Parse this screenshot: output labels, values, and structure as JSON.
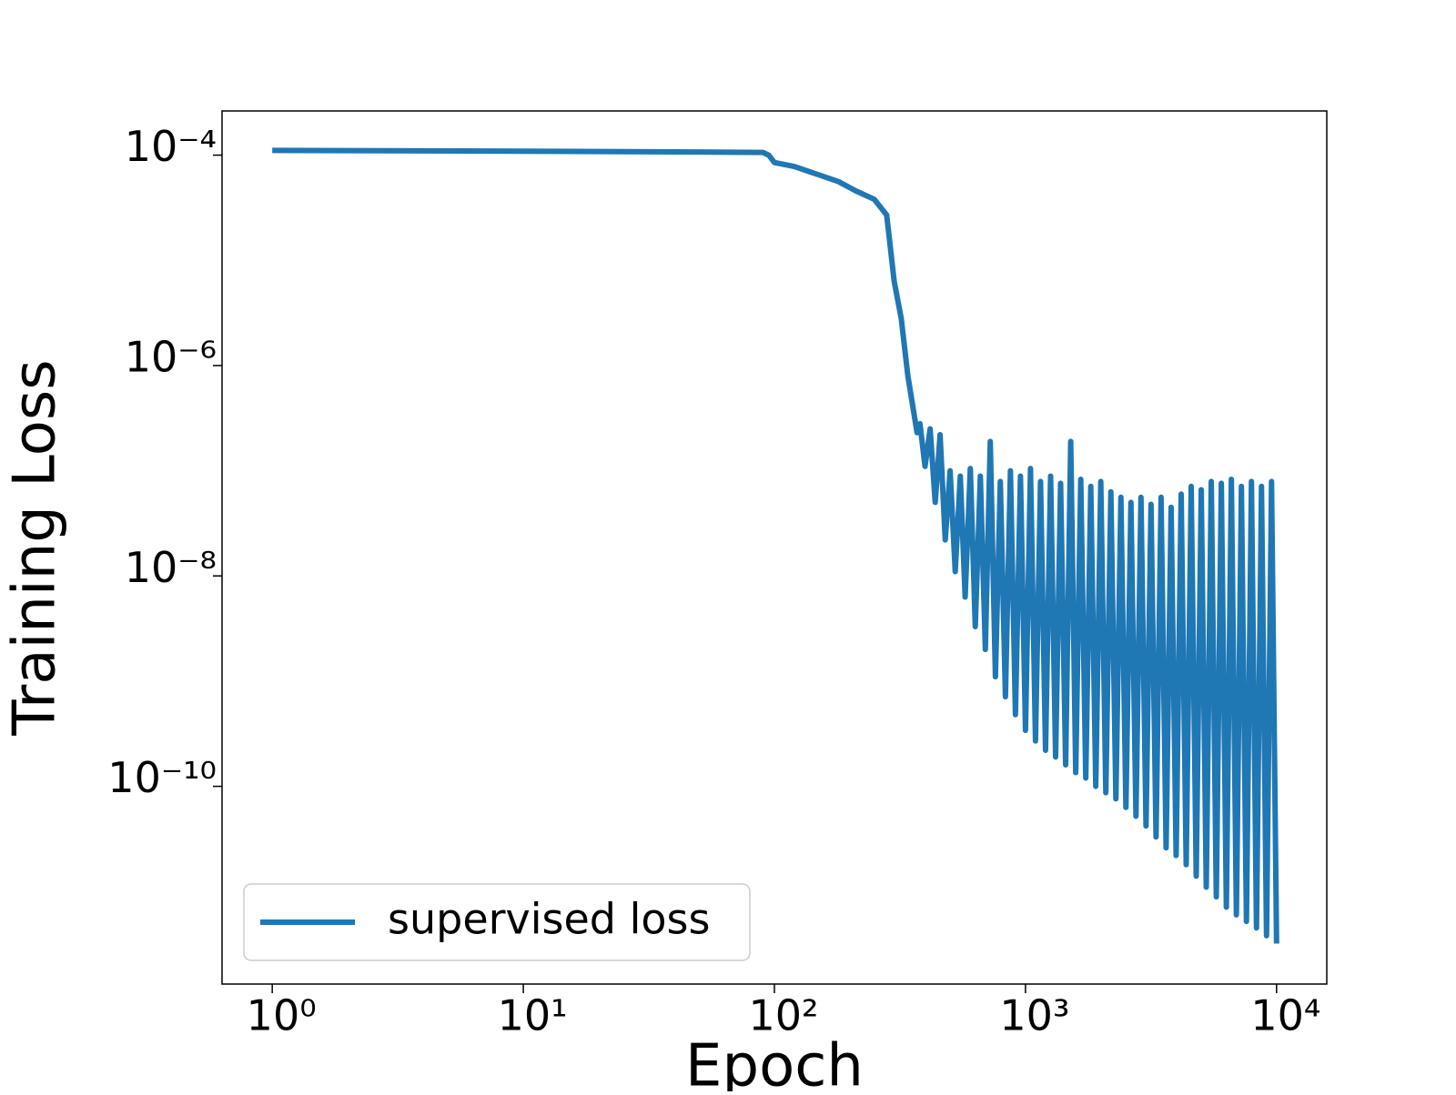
{
  "chart_data": {
    "type": "line",
    "xlabel": "Epoch",
    "ylabel": "Training Loss",
    "xscale": "log",
    "yscale": "log",
    "xlim": [
      0.631,
      15849
    ],
    "ylim": [
      1.32e-12,
      0.000263
    ],
    "xticks": [
      {
        "value": 1,
        "label": "10⁰"
      },
      {
        "value": 10,
        "label": "10¹"
      },
      {
        "value": 100,
        "label": "10²"
      },
      {
        "value": 1000,
        "label": "10³"
      },
      {
        "value": 10000,
        "label": "10⁴"
      }
    ],
    "yticks": [
      {
        "value": 1e-10,
        "label": "10⁻¹⁰"
      },
      {
        "value": 1e-08,
        "label": "10⁻⁸"
      },
      {
        "value": 1e-06,
        "label": "10⁻⁶"
      },
      {
        "value": 0.0001,
        "label": "10⁻⁴"
      }
    ],
    "legend": "lower left",
    "series": [
      {
        "name": "supervised loss",
        "color": "#1f77b4",
        "x": [
          1,
          10,
          50,
          90,
          95,
          100,
          120,
          150,
          180,
          210,
          250,
          280,
          300,
          320,
          340,
          370,
          380,
          398,
          417,
          437,
          457,
          479,
          501,
          525,
          550,
          575,
          603,
          631,
          661,
          692,
          724,
          759,
          794,
          832,
          871,
          912,
          955,
          1000,
          1047,
          1096,
          1148,
          1202,
          1259,
          1318,
          1380,
          1445,
          1514,
          1585,
          1660,
          1738,
          1820,
          1905,
          1995,
          2089,
          2188,
          2291,
          2399,
          2512,
          2630,
          2754,
          2884,
          3020,
          3162,
          3311,
          3467,
          3631,
          3802,
          3981,
          4169,
          4365,
          4571,
          4786,
          5012,
          5248,
          5495,
          5754,
          6026,
          6310,
          6607,
          6918,
          7244,
          7586,
          7943,
          8318,
          8710,
          9120,
          9550,
          10000
        ],
        "values": [
          0.000111,
          0.000109,
          0.000107,
          0.000106,
          0.0001,
          8.5e-05,
          7.8e-05,
          6.5e-05,
          5.6e-05,
          4.6e-05,
          3.8e-05,
          2.7e-05,
          6.3e-06,
          2.8e-06,
          8e-07,
          2.3e-07,
          2.8e-07,
          1.1e-07,
          2.5e-07,
          5e-08,
          2.2e-07,
          2.2e-08,
          1e-07,
          1.1e-08,
          8.9e-08,
          6.3e-09,
          1.05e-07,
          3.3e-09,
          8.9e-08,
          2e-09,
          1.9e-07,
          1.1e-09,
          7.9e-08,
          7.1e-10,
          1e-07,
          4.8e-10,
          8.9e-08,
          3.4e-10,
          1.05e-07,
          2.7e-10,
          7.9e-08,
          2.2e-10,
          8.9e-08,
          1.9e-10,
          7.6e-08,
          1.6e-10,
          1.9e-07,
          1.35e-10,
          8.3e-08,
          1.2e-10,
          7.1e-08,
          1e-10,
          7.9e-08,
          8.7e-11,
          6.3e-08,
          7.6e-11,
          5.6e-08,
          6.3e-11,
          5e-08,
          5.2e-11,
          5.6e-08,
          4.2e-11,
          4.8e-08,
          3.3e-11,
          5.6e-08,
          2.6e-11,
          4.5e-08,
          2.2e-11,
          6e-08,
          1.8e-11,
          7.1e-08,
          1.4e-11,
          6.6e-08,
          1.1e-11,
          7.9e-08,
          8.9e-12,
          7.6e-08,
          7.1e-12,
          8.3e-08,
          6e-12,
          7.1e-08,
          5.2e-12,
          7.9e-08,
          4.5e-12,
          7.1e-08,
          3.8e-12,
          7.9e-08,
          3.2e-12
        ]
      }
    ]
  }
}
